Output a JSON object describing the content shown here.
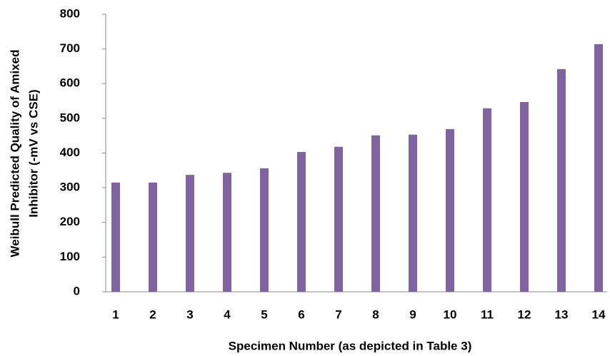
{
  "chart_data": {
    "type": "bar",
    "ylabel": [
      "Weibull Predicted Quality of Amixed",
      "Inhibitor (-mV vs CSE)"
    ],
    "xlabel": "Specimen Number (as depicted in Table 3)",
    "categories": [
      "1",
      "2",
      "3",
      "4",
      "5",
      "6",
      "7",
      "8",
      "9",
      "10",
      "11",
      "12",
      "13",
      "14"
    ],
    "values": [
      315,
      315,
      337,
      343,
      356,
      403,
      418,
      451,
      453,
      469,
      529,
      547,
      642,
      714
    ],
    "color": "#8064a2",
    "ylim": [
      0,
      800
    ],
    "yticks": [
      0,
      100,
      200,
      300,
      400,
      500,
      600,
      700,
      800
    ],
    "grid": false
  }
}
